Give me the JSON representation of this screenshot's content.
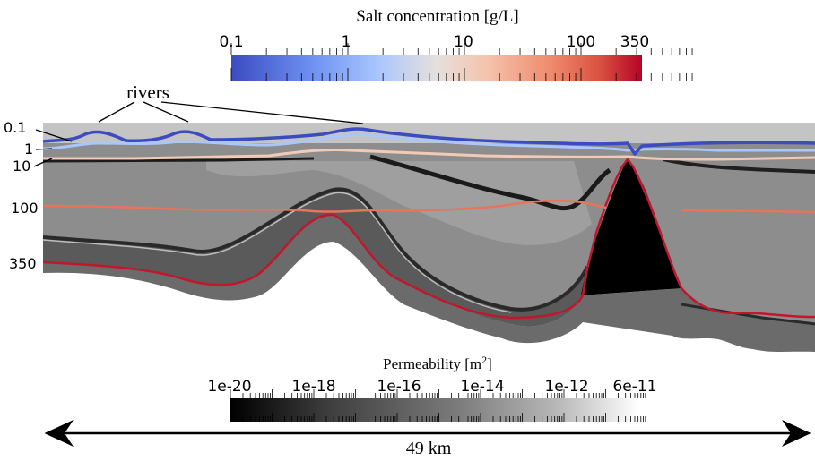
{
  "salt_colorbar": {
    "title": "Salt concentration [g/L]",
    "ticks": [
      "0.1",
      "1",
      "10",
      "100",
      "350"
    ],
    "gradient": [
      "#3b4cc0",
      "#6f92f3",
      "#aac7fd",
      "#dddddd",
      "#f7b89c",
      "#f0816a",
      "#d44e41",
      "#b40426"
    ]
  },
  "perm_colorbar": {
    "title": "Permeability [m",
    "title_sup": "2",
    "title_end": "]",
    "ticks": [
      "1e-20",
      "1e-18",
      "1e-16",
      "1e-14",
      "1e-12",
      "6e-11"
    ],
    "gradient": [
      "#000000",
      "#555555",
      "#9a9a9a",
      "#ffffff"
    ]
  },
  "rivers_label": "rivers",
  "contour_labels": [
    "0.1",
    "1",
    "10",
    "100",
    "350"
  ],
  "contour_colors": {
    "0.1": "#3b4cc0",
    "1": "#aac7fd",
    "10": "#f2cbb7",
    "100": "#e8745a",
    "350": "#c0172d"
  },
  "distance_label": "49 km"
}
